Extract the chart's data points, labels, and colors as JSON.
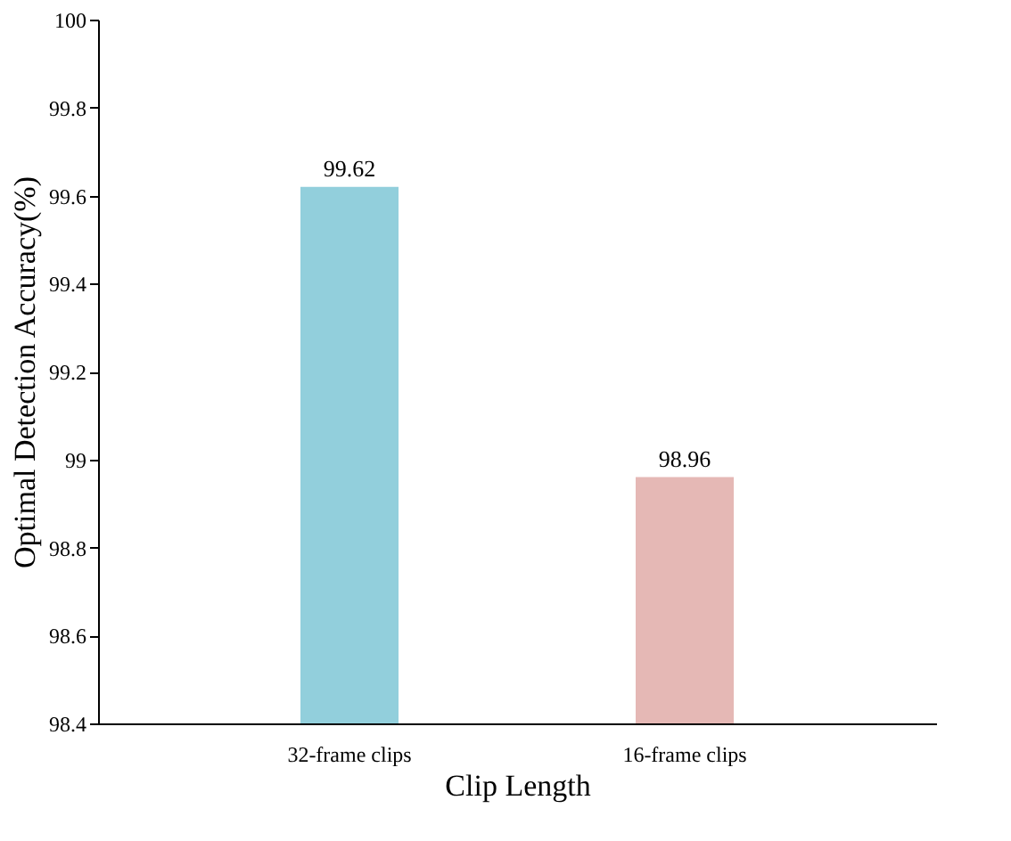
{
  "chart_data": {
    "type": "bar",
    "xlabel": "Clip Length",
    "ylabel": "Optimal Detection Accuracy(%)",
    "categories": [
      "32-frame clips",
      "16-frame clips"
    ],
    "values": [
      99.62,
      98.96
    ],
    "colors": [
      "#92cfdc",
      "#e5b8b5"
    ],
    "ylim": [
      98.4,
      100
    ],
    "yticks": [
      98.4,
      98.6,
      98.8,
      99,
      99.2,
      99.4,
      99.6,
      99.8,
      100
    ],
    "data_labels": true,
    "grid": false
  }
}
